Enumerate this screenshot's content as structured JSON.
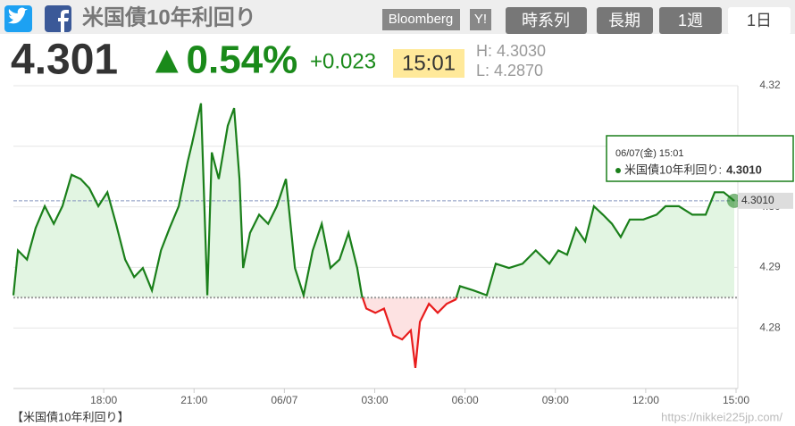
{
  "header": {
    "title": "米国債10年利回り",
    "price": "4.301",
    "change_pct": "▲0.54%",
    "change": "+0.023",
    "time": "15:01",
    "high": "H: 4.3030",
    "low": "L: 4.2870",
    "buttons": [
      "Bloomberg",
      "Y!"
    ],
    "tabs": [
      "時系列",
      "長期",
      "1週",
      "1日"
    ]
  },
  "chart_data": {
    "type": "line",
    "x": [
      0.0,
      0.15,
      0.45,
      0.74,
      1.04,
      1.34,
      1.63,
      1.93,
      2.23,
      2.52,
      2.82,
      3.12,
      3.41,
      3.71,
      4.01,
      4.3,
      4.6,
      4.9,
      5.19,
      5.49,
      5.79,
      5.93,
      6.23,
      6.44,
      6.59,
      6.82,
      7.12,
      7.33,
      7.51,
      7.63,
      7.86,
      8.16,
      8.46,
      8.75,
      9.05,
      9.35,
      9.64,
      9.94,
      10.24,
      10.53,
      10.83,
      11.13,
      11.42,
      11.57,
      11.72,
      12.02,
      12.31,
      12.61,
      12.91,
      13.2,
      13.35,
      13.5,
      13.8,
      14.09,
      14.39,
      14.69,
      14.83,
      15.28,
      15.72,
      16.02,
      16.46,
      16.91,
      17.35,
      17.8,
      18.1,
      18.39,
      18.69,
      18.99,
      19.28,
      19.58,
      19.88,
      20.17,
      20.47,
      20.92,
      21.36,
      21.66,
      22.1,
      22.55,
      22.99,
      23.29,
      23.59,
      23.94
    ],
    "series": [
      {
        "name": "米国債10年利回り",
        "color": "#1a7f1a",
        "down_color": "#e81c1c",
        "values": [
          4.2854,
          4.2928,
          4.2913,
          4.2965,
          4.3001,
          4.2972,
          4.3001,
          4.3053,
          4.3046,
          4.3031,
          4.3001,
          4.3024,
          4.2972,
          4.2913,
          4.2884,
          4.2899,
          4.2862,
          4.2928,
          4.2965,
          4.3001,
          4.3075,
          4.3104,
          4.3171,
          4.2854,
          4.309,
          4.3046,
          4.3134,
          4.3163,
          4.3046,
          4.2899,
          4.2957,
          4.2987,
          4.2972,
          4.3001,
          4.3046,
          4.2899,
          4.2854,
          4.2928,
          4.2972,
          4.2899,
          4.2913,
          4.2957,
          4.2899,
          4.2854,
          4.2832,
          4.2825,
          4.2832,
          4.2788,
          4.2781,
          4.2796,
          4.2734,
          4.281,
          4.284,
          4.2825,
          4.284,
          4.2847,
          4.2869,
          4.2862,
          4.2854,
          4.2906,
          4.2899,
          4.2906,
          4.2928,
          4.2906,
          4.2928,
          4.2921,
          4.2965,
          4.2943,
          4.3001,
          4.2987,
          4.2972,
          4.295,
          4.2979,
          4.2979,
          4.2987,
          4.3001,
          4.3001,
          4.2987,
          4.2987,
          4.3024,
          4.3024,
          4.301
        ]
      }
    ],
    "xlim": [
      0,
      24
    ],
    "xticks": [
      {
        "value": 3,
        "label": "18:00"
      },
      {
        "value": 6,
        "label": "21:00"
      },
      {
        "value": 9,
        "label": "06/07"
      },
      {
        "value": 12,
        "label": "03:00"
      },
      {
        "value": 15,
        "label": "06:00"
      },
      {
        "value": 18,
        "label": "09:00"
      },
      {
        "value": 21,
        "label": "12:00"
      },
      {
        "value": 24,
        "label": "15:00"
      }
    ],
    "ylim": [
      4.27,
      4.32
    ],
    "yticks": [
      4.28,
      4.29,
      {
        "value": 4.3,
        "label": "4.30"
      },
      4.31,
      4.32
    ],
    "baseline": 4.285,
    "last_line": 4.301,
    "last_label": "4.3010",
    "grid": true,
    "tooltip": {
      "date": "06/07(金) 15:01",
      "label": "米国債10年利回り:",
      "value": "4.3010"
    }
  },
  "footer": {
    "caption": "【米国債10年利回り】",
    "url": "https://nikkei225jp.com/"
  }
}
